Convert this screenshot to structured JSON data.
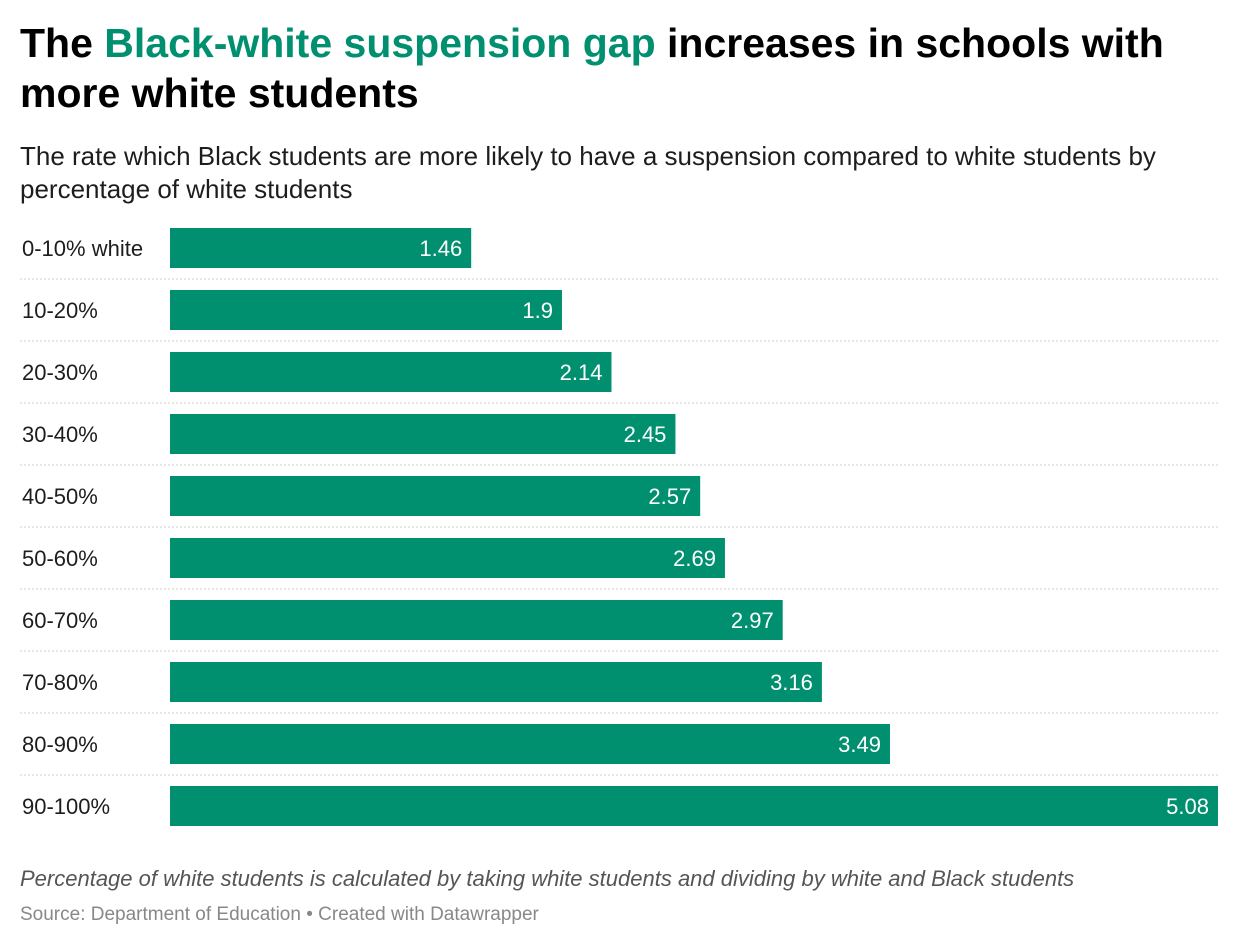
{
  "title": {
    "before": "The ",
    "highlight": "Black-white suspension gap",
    "after": " increases in schools with more white students"
  },
  "subtitle": "The rate which Black students are more likely to have a suspension compared to white students by percentage of white students",
  "notes": "Percentage of white students is calculated by taking white students and dividing by white and Black students",
  "source": "Source: Department of Education • Created with Datawrapper",
  "colors": {
    "bar": "#00906f",
    "highlight": "#00906f",
    "separator": "#cfcfcf"
  },
  "chart_data": {
    "type": "bar",
    "orientation": "horizontal",
    "categories": [
      "0-10% white",
      "10-20%",
      "20-30%",
      "30-40%",
      "40-50%",
      "50-60%",
      "60-70%",
      "70-80%",
      "80-90%",
      "90-100%"
    ],
    "values": [
      1.46,
      1.9,
      2.14,
      2.45,
      2.57,
      2.69,
      2.97,
      3.16,
      3.49,
      5.08
    ],
    "value_labels": [
      "1.46",
      "1.9",
      "2.14",
      "2.45",
      "2.57",
      "2.69",
      "2.97",
      "3.16",
      "3.49",
      "5.08"
    ],
    "xlim": [
      0,
      5.08
    ],
    "grid": false
  }
}
